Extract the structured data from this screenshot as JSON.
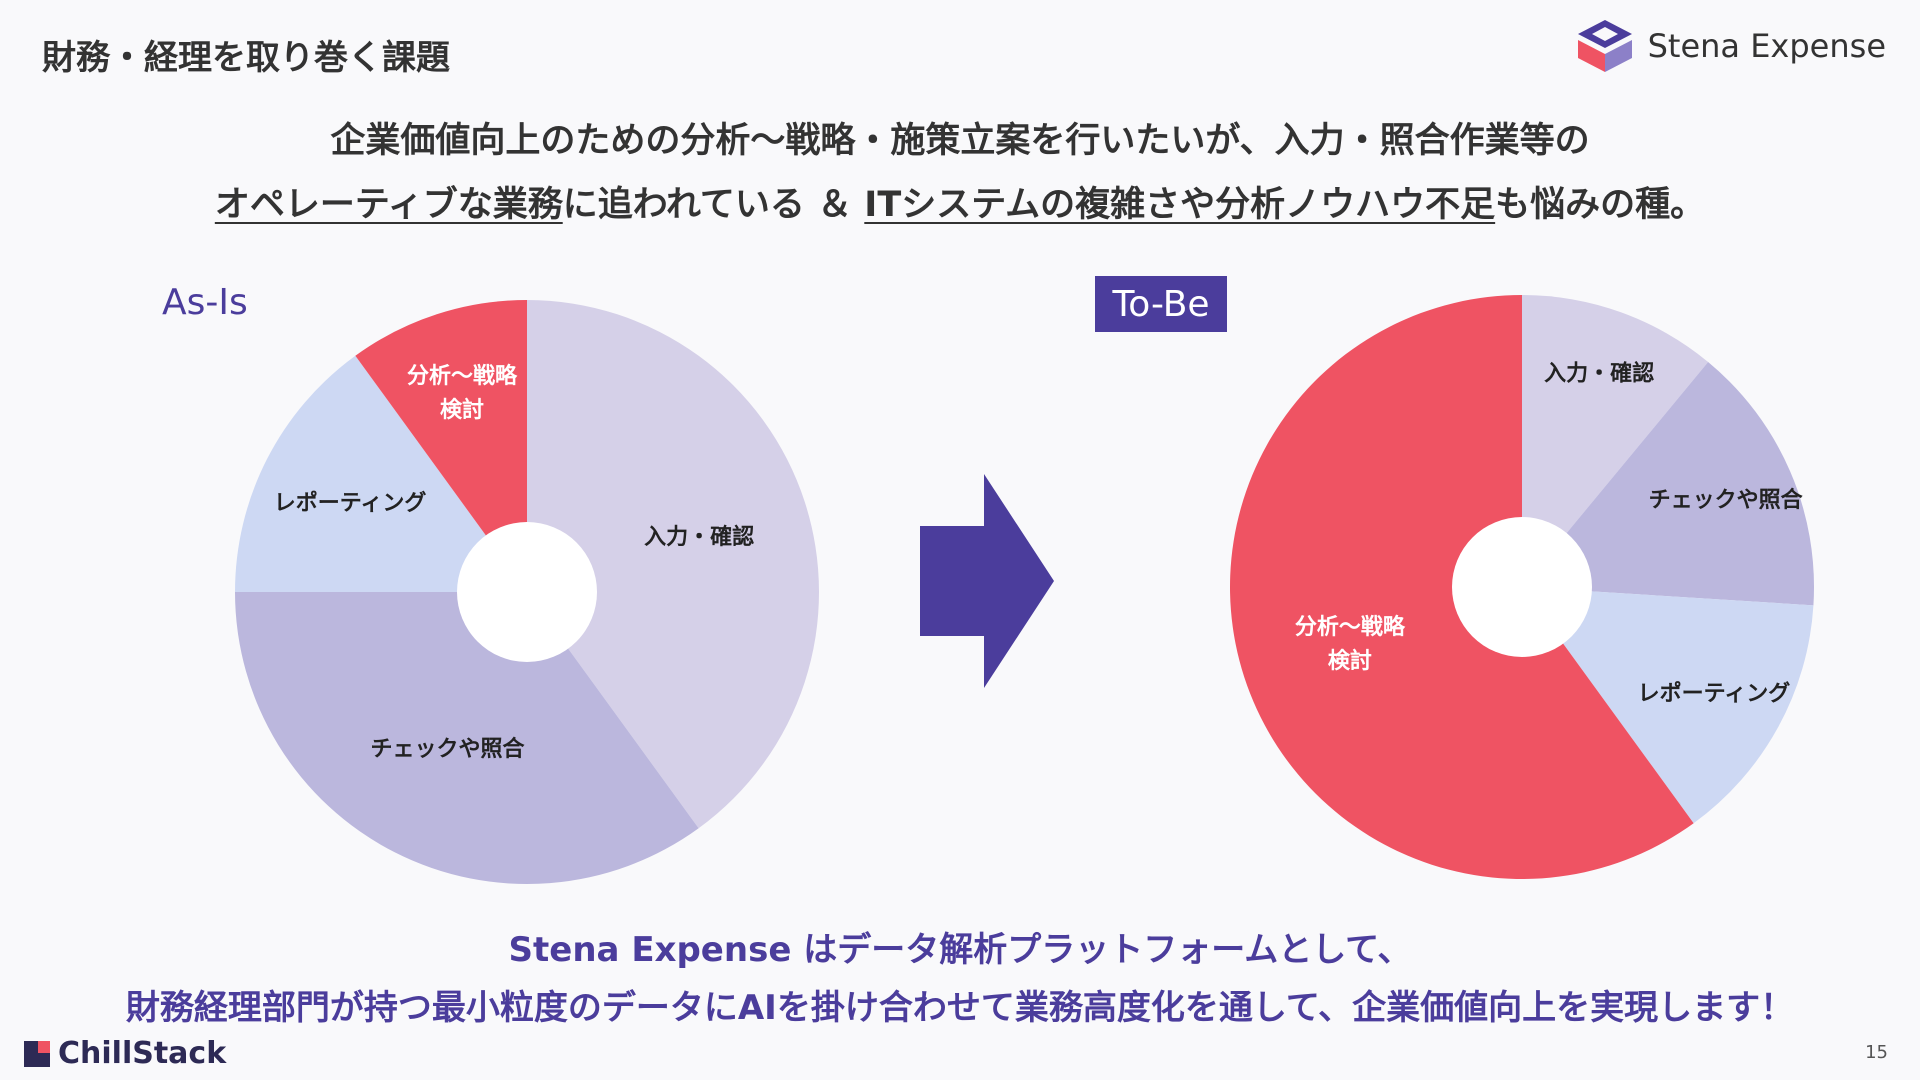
{
  "page": {
    "title": "財務・経理を取り巻く課題",
    "brand_name": "Stena Expense",
    "page_number": "15",
    "footer_brand": "ChillStack"
  },
  "headline": {
    "line1": "企業価値向上のための分析〜戦略・施策立案を行いたいが、入力・照合作業等の",
    "line2_part1": "オペレーティブな業務",
    "line2_part2": "に追われている ＆ ",
    "line2_part3": "ITシステムの複雑さや分析ノウハウ不足",
    "line2_part4": "も悩みの種。"
  },
  "bottom_message": {
    "line1": "Stena Expense はデータ解析プラットフォームとして、",
    "line2": "財務経理部門が持つ最小粒度のデータにAIを掛け合わせて業務高度化を通して、企業価値向上を実現します！"
  },
  "colors": {
    "accent": "#4b3d9c",
    "red": "#ef5363",
    "lavender_light": "#d5d0e8",
    "lavender_mid": "#bbb7dd",
    "blue_light": "#cdd8f3"
  },
  "icons": [
    "stena-logo-icon",
    "chillstack-logo-icon",
    "right-arrow-icon"
  ],
  "chart_data": [
    {
      "type": "pie",
      "title": "As-Is",
      "labels": [
        "入力・確認",
        "チェックや照合",
        "レポーティング",
        "分析〜戦略検討"
      ],
      "values": [
        40,
        35,
        15,
        10
      ],
      "colors": [
        "#d5d0e8",
        "#bbb7dd",
        "#cdd8f3",
        "#ef5363"
      ]
    },
    {
      "type": "pie",
      "title": "To-Be",
      "labels": [
        "入力・確認",
        "チェックや照合",
        "レポーティング",
        "分析〜戦略検討"
      ],
      "values": [
        11,
        15,
        14,
        60
      ],
      "colors": [
        "#d5d0e8",
        "#bbb7dd",
        "#cdd8f3",
        "#ef5363"
      ]
    }
  ]
}
